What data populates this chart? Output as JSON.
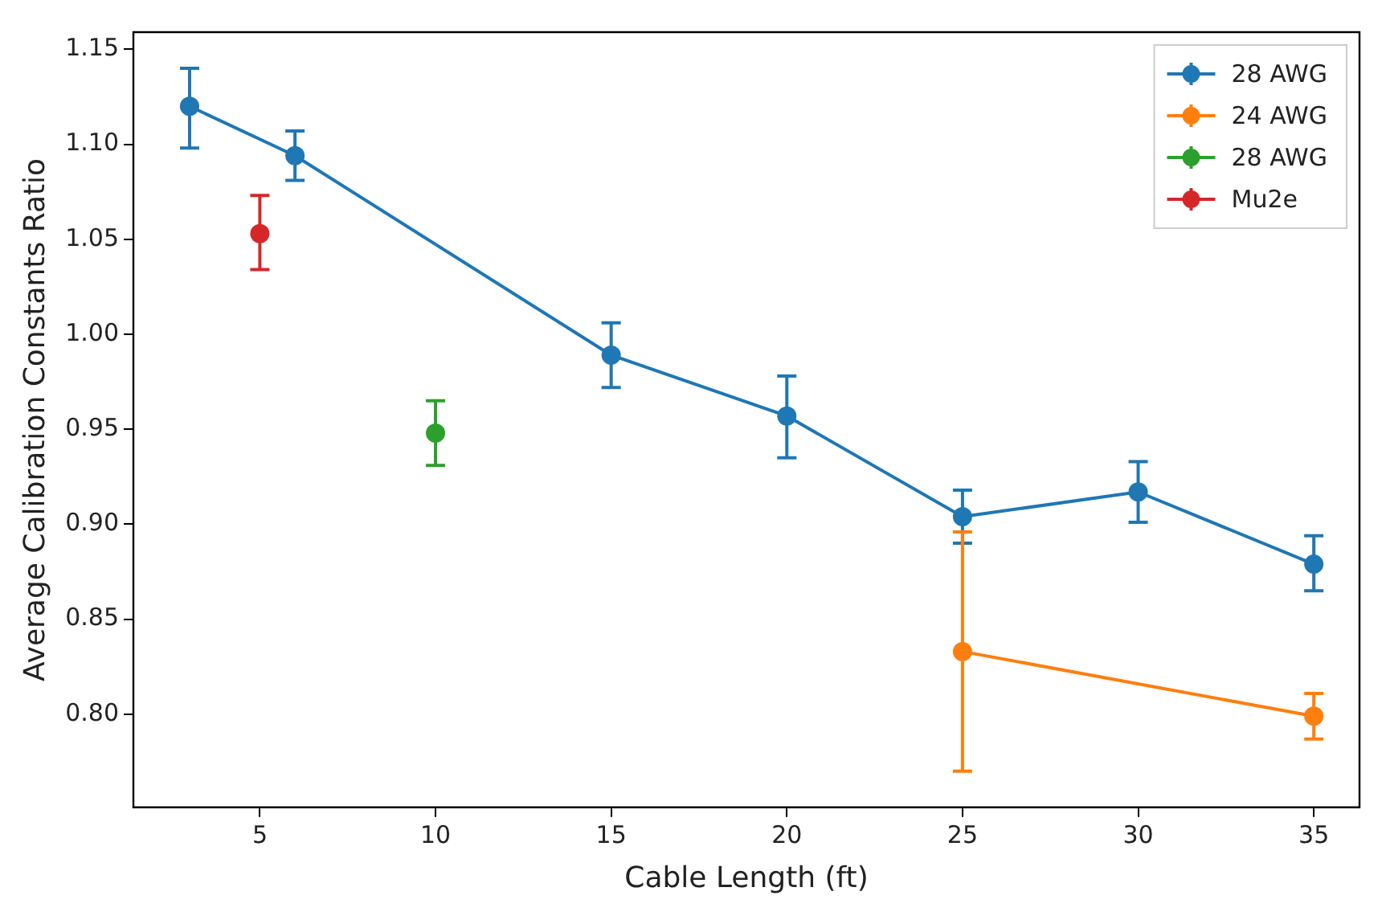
{
  "chart_data": {
    "type": "line",
    "xlabel": "Cable Length (ft)",
    "ylabel": "Average Calibration Constants Ratio",
    "xlim": [
      1.4,
      36.3
    ],
    "xticks": [
      5,
      10,
      15,
      20,
      25,
      30,
      35
    ],
    "ylim": [
      0.751,
      1.159
    ],
    "yticks": [
      {
        "value": 0.8,
        "label": "0.80"
      },
      0.85,
      {
        "value": 0.9,
        "label": "0.90"
      },
      0.95,
      {
        "value": 1.0,
        "label": "1.00"
      },
      1.05,
      {
        "value": 1.1,
        "label": "1.10"
      },
      1.15
    ],
    "grid": false,
    "legend": "top right",
    "marker": "circle",
    "series": [
      {
        "name": "28 AWG",
        "color": "#1f77b4",
        "x": [
          3,
          6,
          15,
          20,
          25,
          30,
          35
        ],
        "values": [
          1.12,
          1.094,
          0.989,
          0.957,
          0.904,
          0.917,
          0.879
        ],
        "errors": [
          [
            1.098,
            1.14
          ],
          [
            1.081,
            1.107
          ],
          [
            0.972,
            1.006
          ],
          [
            0.935,
            0.978
          ],
          [
            0.89,
            0.918
          ],
          [
            0.901,
            0.933
          ],
          [
            0.865,
            0.894
          ]
        ]
      },
      {
        "name": "24 AWG",
        "color": "#ff7f0e",
        "x": [
          25,
          35
        ],
        "values": [
          0.833,
          0.799
        ],
        "errors": [
          [
            0.77,
            0.896
          ],
          [
            0.787,
            0.811
          ]
        ]
      },
      {
        "name": "28 AWG",
        "type": "scatter",
        "color": "#2ca02c",
        "x": [
          10
        ],
        "values": [
          0.948
        ],
        "errors": [
          [
            0.931,
            0.965
          ]
        ]
      },
      {
        "name": "Mu2e",
        "type": "scatter",
        "color": "#d62728",
        "x": [
          5
        ],
        "values": [
          1.053
        ],
        "errors": [
          [
            1.034,
            1.073
          ]
        ]
      }
    ]
  }
}
